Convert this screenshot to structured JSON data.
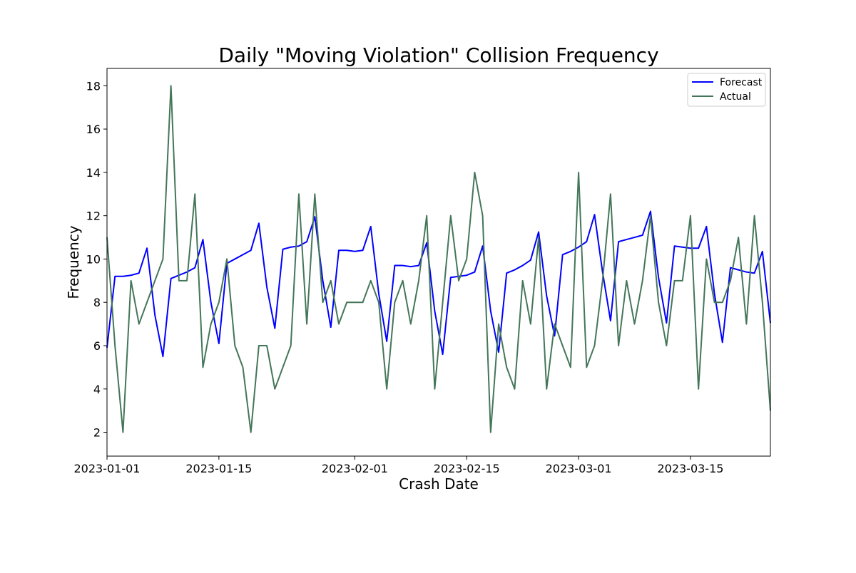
{
  "chart_data": {
    "type": "line",
    "title": "Daily \"Moving Violation\" Collision Frequency",
    "xlabel": "Crash Date",
    "ylabel": "Frequency",
    "x_start": "2023-01-01",
    "x_end": "2023-03-25",
    "ylim": [
      0.9,
      18.8
    ],
    "xticks": [
      {
        "date": "2023-01-01",
        "label": "2023-01-01"
      },
      {
        "date": "2023-01-15",
        "label": "2023-01-15"
      },
      {
        "date": "2023-02-01",
        "label": "2023-02-01"
      },
      {
        "date": "2023-02-15",
        "label": "2023-02-15"
      },
      {
        "date": "2023-03-01",
        "label": "2023-03-01"
      },
      {
        "date": "2023-03-15",
        "label": "2023-03-15"
      }
    ],
    "yticks": [
      2,
      4,
      6,
      8,
      10,
      12,
      14,
      16,
      18
    ],
    "grid": false,
    "legend_position": "top-right",
    "series": [
      {
        "name": "Forecast",
        "color": "#0000ff",
        "values": [
          5.9,
          9.2,
          9.2,
          9.25,
          9.35,
          10.5,
          7.4,
          5.5,
          9.1,
          9.25,
          9.4,
          9.6,
          10.9,
          8.0,
          6.1,
          9.8,
          10.0,
          10.2,
          10.4,
          11.65,
          8.7,
          6.8,
          10.45,
          10.55,
          10.6,
          10.8,
          11.95,
          9.0,
          6.85,
          10.4,
          10.4,
          10.35,
          10.4,
          11.5,
          8.4,
          6.2,
          9.7,
          9.7,
          9.65,
          9.7,
          10.75,
          7.6,
          5.6,
          9.15,
          9.2,
          9.25,
          9.4,
          10.6,
          7.6,
          5.7,
          9.35,
          9.5,
          9.7,
          9.95,
          11.25,
          8.3,
          6.45,
          10.2,
          10.35,
          10.55,
          10.8,
          12.05,
          9.4,
          7.15,
          10.8,
          10.9,
          11.0,
          11.1,
          12.2,
          9.15,
          7.05,
          10.6,
          10.55,
          10.5,
          10.5,
          11.5,
          8.4,
          6.15,
          9.6,
          9.5,
          9.4,
          9.35,
          10.35,
          7.05
        ]
      },
      {
        "name": "Actual",
        "color": "#44765a",
        "values": [
          11,
          6,
          2,
          9,
          7,
          8,
          9,
          10,
          18,
          9,
          9,
          13,
          5,
          7,
          8,
          10,
          6,
          5,
          2,
          6,
          6,
          4,
          5,
          6,
          13,
          7,
          13,
          8,
          9,
          7,
          8,
          8,
          8,
          9,
          8,
          4,
          8,
          9,
          7,
          9,
          12,
          4,
          8,
          12,
          9,
          10,
          14,
          12,
          2,
          7,
          5,
          4,
          9,
          7,
          11,
          4,
          7,
          6,
          5,
          14,
          5,
          6,
          9,
          13,
          6,
          9,
          7,
          9,
          12,
          8,
          6,
          9,
          9,
          12,
          4,
          10,
          8,
          8,
          9,
          11,
          7,
          12,
          8,
          3
        ]
      }
    ]
  }
}
